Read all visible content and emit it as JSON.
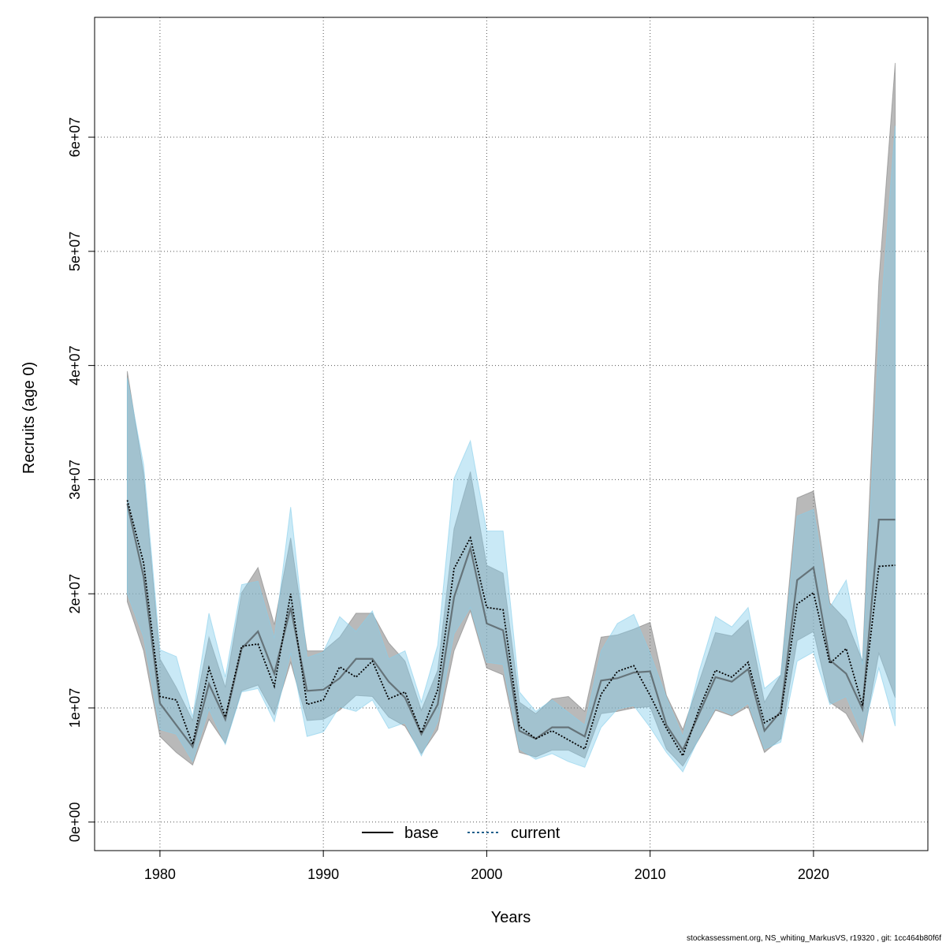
{
  "chart_data": {
    "type": "line",
    "xlabel": "Years",
    "ylabel": "Recruits (age 0)",
    "xlim": [
      1976,
      2027
    ],
    "ylim": [
      -2500000,
      70500000
    ],
    "x_ticks": [
      1980,
      1990,
      2000,
      2010,
      2020
    ],
    "x_tick_labels": [
      "1980",
      "1990",
      "2000",
      "2010",
      "2020"
    ],
    "y_ticks": [
      0,
      10000000,
      20000000,
      30000000,
      40000000,
      50000000,
      60000000
    ],
    "y_tick_labels": [
      "0e+00",
      "1e+07",
      "2e+07",
      "3e+07",
      "4e+07",
      "5e+07",
      "6e+07"
    ],
    "grid": true,
    "legend_position": "bottom-center",
    "x": [
      1978,
      1979,
      1980,
      1981,
      1982,
      1983,
      1984,
      1985,
      1986,
      1987,
      1988,
      1989,
      1990,
      1991,
      1992,
      1993,
      1994,
      1995,
      1996,
      1997,
      1998,
      1999,
      2000,
      2001,
      2002,
      2003,
      2004,
      2005,
      2006,
      2007,
      2008,
      2009,
      2010,
      2011,
      2012,
      2013,
      2014,
      2015,
      2016,
      2017,
      2018,
      2019,
      2020,
      2021,
      2022,
      2023,
      2024,
      2025
    ],
    "series": [
      {
        "name": "base",
        "color": "#000000",
        "band_color": "#808080",
        "line_style": "solid",
        "values": [
          27900000,
          21500000,
          10400000,
          8500000,
          6600000,
          12100000,
          9000000,
          15200000,
          16700000,
          13000000,
          18800000,
          11500000,
          11600000,
          12600000,
          14300000,
          14300000,
          12300000,
          10900000,
          7700000,
          10300000,
          19700000,
          24000000,
          17400000,
          16800000,
          8000000,
          7300000,
          8300000,
          8300000,
          7500000,
          12400000,
          12600000,
          13100000,
          13200000,
          8500000,
          6300000,
          9500000,
          12700000,
          12300000,
          13400000,
          8000000,
          9700000,
          21200000,
          22300000,
          14200000,
          13000000,
          9900000,
          26500000,
          26500000
        ],
        "lower": [
          19300000,
          15000000,
          7500000,
          6100000,
          5000000,
          9000000,
          6900000,
          11500000,
          12000000,
          9400000,
          14000000,
          8900000,
          9000000,
          9800000,
          11100000,
          11000000,
          9200000,
          8400000,
          6000000,
          8100000,
          15000000,
          18500000,
          13500000,
          12900000,
          6100000,
          5700000,
          6300000,
          6300000,
          5600000,
          9500000,
          9700000,
          10000000,
          10100000,
          6400000,
          4900000,
          7300000,
          9800000,
          9300000,
          10100000,
          6100000,
          7300000,
          15900000,
          16700000,
          10500000,
          9500000,
          7000000,
          14800000,
          10900000
        ],
        "upper": [
          39500000,
          30500000,
          14300000,
          11800000,
          8900000,
          16200000,
          11800000,
          20100000,
          22300000,
          17300000,
          24900000,
          15000000,
          15000000,
          16200000,
          18300000,
          18300000,
          15700000,
          14100000,
          9800000,
          13300000,
          25700000,
          30700000,
          22500000,
          21800000,
          10500000,
          9500000,
          10800000,
          11000000,
          9700000,
          16200000,
          16400000,
          16900000,
          17500000,
          11100000,
          8100000,
          12300000,
          16600000,
          16300000,
          17700000,
          10500000,
          12900000,
          28400000,
          29000000,
          19200000,
          17700000,
          14100000,
          47400000,
          66500000
        ]
      },
      {
        "name": "current",
        "color": "#1f5f8b",
        "band_color": "#87ceeb",
        "line_style": "dotted",
        "values": [
          28200000,
          22700000,
          11000000,
          10700000,
          6800000,
          13500000,
          9200000,
          15400000,
          15600000,
          11900000,
          20000000,
          10300000,
          10700000,
          13600000,
          12700000,
          14100000,
          10800000,
          11400000,
          7800000,
          11600000,
          22200000,
          24900000,
          18800000,
          18600000,
          8400000,
          7300000,
          8000000,
          7200000,
          6400000,
          11200000,
          13200000,
          13700000,
          11100000,
          8200000,
          5800000,
          9900000,
          13300000,
          12700000,
          14000000,
          8700000,
          9500000,
          19100000,
          20100000,
          13900000,
          15200000,
          10200000,
          22400000,
          22500000
        ],
        "lower": [
          20000000,
          16200000,
          8100000,
          7700000,
          5300000,
          9900000,
          6800000,
          11400000,
          11700000,
          8800000,
          14800000,
          7500000,
          7900000,
          10100000,
          9700000,
          10700000,
          8200000,
          8700000,
          5800000,
          8800000,
          16500000,
          18800000,
          14000000,
          13800000,
          6400000,
          5500000,
          6000000,
          5300000,
          4800000,
          8300000,
          9900000,
          10200000,
          8300000,
          6100000,
          4400000,
          7400000,
          10000000,
          9400000,
          10400000,
          6400000,
          7000000,
          14100000,
          14900000,
          10300000,
          11000000,
          7600000,
          13500000,
          8400000
        ],
        "upper": [
          38900000,
          31300000,
          15100000,
          14500000,
          9200000,
          18300000,
          12700000,
          20800000,
          21100000,
          16100000,
          27600000,
          14400000,
          14900000,
          18000000,
          16700000,
          18500000,
          14300000,
          15000000,
          10500000,
          15500000,
          30100000,
          33400000,
          25500000,
          25500000,
          11400000,
          9700000,
          10700000,
          9600000,
          8500000,
          15000000,
          17400000,
          18200000,
          14800000,
          10900000,
          7500000,
          13200000,
          18000000,
          17100000,
          18800000,
          11700000,
          12900000,
          26800000,
          27400000,
          18800000,
          21200000,
          13800000,
          42300000,
          61000000
        ]
      }
    ]
  },
  "footer_text": "stockassessment.org, NS_whiting_MarkusVS, r19320 , git: 1cc464b80f6f"
}
